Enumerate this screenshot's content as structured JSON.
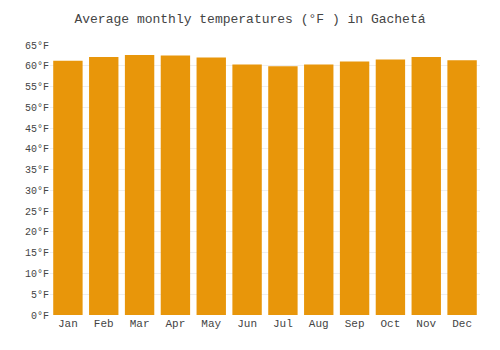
{
  "chart_data": {
    "type": "bar",
    "title": "Average monthly temperatures (°F ) in Gachetá",
    "categories": [
      "Jan",
      "Feb",
      "Mar",
      "Apr",
      "May",
      "Jun",
      "Jul",
      "Aug",
      "Sep",
      "Oct",
      "Nov",
      "Dec"
    ],
    "values": [
      61.2,
      62.1,
      62.6,
      62.5,
      62.0,
      60.3,
      59.9,
      60.3,
      61.0,
      61.5,
      62.1,
      61.3
    ],
    "color": "#E8960A",
    "ylim": [
      0,
      65
    ],
    "yticks": [
      {
        "value": 0,
        "label": "0°F"
      },
      {
        "value": 5,
        "label": "5°F"
      },
      {
        "value": 10,
        "label": "10°F"
      },
      {
        "value": 15,
        "label": "15°F"
      },
      {
        "value": 20,
        "label": "20°F"
      },
      {
        "value": 25,
        "label": "25°F"
      },
      {
        "value": 30,
        "label": "30°F"
      },
      {
        "value": 35,
        "label": "35°F"
      },
      {
        "value": 40,
        "label": "40°F"
      },
      {
        "value": 45,
        "label": "45°F"
      },
      {
        "value": 50,
        "label": "50°F"
      },
      {
        "value": 55,
        "label": "55°F"
      },
      {
        "value": 60,
        "label": "60°F"
      },
      {
        "value": 65,
        "label": "65°F"
      }
    ],
    "grid": true
  }
}
